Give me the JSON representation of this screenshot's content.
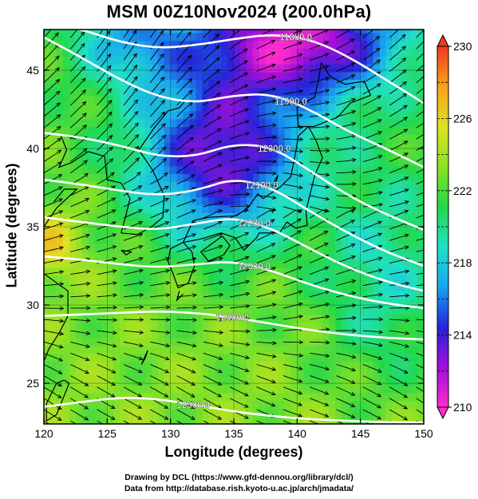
{
  "title": "MSM 00Z10Nov2024 (200.0hPa)",
  "credits": {
    "line1": "Drawing by DCL (https://www.gfd-dennou.org/library/dcl/)",
    "line2": "Data from http://database.rish.kyoto-u.ac.jp/arch/jmadata/"
  },
  "chart_data": {
    "type": "heatmap",
    "xlabel": "Longitude (degrees)",
    "ylabel": "Latitude  (degrees)",
    "xlim": [
      120,
      150
    ],
    "ylim": [
      22.4,
      47.6
    ],
    "x_ticks": [
      120,
      125,
      130,
      135,
      140,
      145,
      150
    ],
    "y_ticks": [
      25,
      30,
      35,
      40,
      45
    ],
    "colorbar": {
      "min": 210,
      "max": 230,
      "ticks": [
        210,
        214,
        218,
        222,
        226,
        230
      ],
      "colors": [
        "#ff2ccf",
        "#a00fd8",
        "#2424d8",
        "#18a4f0",
        "#21e0c5",
        "#22d84a",
        "#8ee223",
        "#e0e024",
        "#f8a21b",
        "#ee3a20"
      ]
    },
    "contours": [
      {
        "label": "11800.0",
        "value": 11800
      },
      {
        "label": "11900.0",
        "value": 11900
      },
      {
        "label": "12000.0",
        "value": 12000
      },
      {
        "label": "12100.0",
        "value": 12100
      },
      {
        "label": "12200.0",
        "value": 12200
      },
      {
        "label": "12300.0",
        "value": 12300
      },
      {
        "label": "12400.0",
        "value": 12400
      },
      {
        "label": "12500.0",
        "value": 12500
      }
    ],
    "field": "temperature (K) with geopotential height contours (m) and wind streamlines"
  }
}
